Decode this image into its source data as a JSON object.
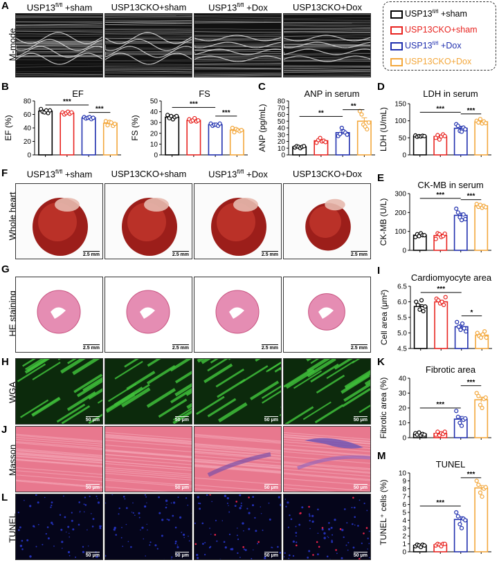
{
  "panel_letters": {
    "A": "A",
    "B": "B",
    "C": "C",
    "D": "D",
    "E": "E",
    "F": "F",
    "G": "G",
    "H": "H",
    "I": "I",
    "J": "J",
    "K": "K",
    "L": "L",
    "M": "M"
  },
  "groups": [
    {
      "base": "USP13",
      "sup": "fl/fl",
      "suffix": " +sham"
    },
    {
      "base": "USP13CKO+sham",
      "sup": "",
      "suffix": ""
    },
    {
      "base": "USP13",
      "sup": "fl/fl",
      "suffix": " +Dox"
    },
    {
      "base": "USP13CKO+Dox",
      "sup": "",
      "suffix": ""
    }
  ],
  "legend": [
    {
      "base": "USP13",
      "sup": "fl/fl",
      "suffix": " +sham",
      "color": "#000000"
    },
    {
      "base": "USP13CKO+sham",
      "sup": "",
      "suffix": "",
      "color": "#e8231f"
    },
    {
      "base": "USP13",
      "sup": "fl/fl",
      "suffix": " +Dox",
      "color": "#1f2fae"
    },
    {
      "base": "USP13CKO+Dox",
      "sup": "",
      "suffix": "",
      "color": "#f3a73b"
    }
  ],
  "row_labels": {
    "mmode": "M-mode",
    "heart": "Whole heart",
    "he": "HE staining",
    "wga": "WGA",
    "masson": "Masson",
    "tunel": "TUNEL"
  },
  "scale_bars": {
    "heart": "2.5 mm",
    "he": "2.5 mm",
    "micro": "50 μm"
  },
  "colors": {
    "c0": "#000000",
    "c1": "#e8231f",
    "c2": "#1f2fae",
    "c3": "#f3a73b"
  },
  "chart_data": [
    {
      "id": "B-EF",
      "type": "bar",
      "title": "EF",
      "ylabel": "EF (%)",
      "ylim": [
        0,
        80
      ],
      "yticks": [
        0,
        20,
        40,
        60,
        80
      ],
      "values": [
        65,
        62,
        55,
        47
      ],
      "errors": [
        1.5,
        1.2,
        0.8,
        2.0
      ],
      "points": [
        [
          68,
          64,
          63,
          66,
          62,
          66
        ],
        [
          63,
          60,
          62,
          64,
          61,
          63
        ],
        [
          56,
          54,
          55,
          56,
          53,
          55
        ],
        [
          50,
          44,
          49,
          48,
          43,
          46
        ]
      ],
      "sig": [
        {
          "from": 0,
          "to": 2,
          "label": "***",
          "y": 74
        },
        {
          "from": 2,
          "to": 3,
          "label": "***",
          "y": 63
        }
      ]
    },
    {
      "id": "B-FS",
      "type": "bar",
      "title": "FS",
      "ylabel": "FS (%)",
      "ylim": [
        0,
        50
      ],
      "yticks": [
        0,
        10,
        20,
        30,
        40,
        50
      ],
      "values": [
        35,
        32,
        28,
        23
      ],
      "errors": [
        1.0,
        0.8,
        0.5,
        0.9
      ],
      "points": [
        [
          37,
          34,
          36,
          33,
          35,
          36
        ],
        [
          33,
          31,
          32,
          34,
          31,
          32
        ],
        [
          29,
          27,
          28,
          28,
          27,
          29
        ],
        [
          25,
          21,
          24,
          23,
          22,
          23
        ]
      ],
      "sig": [
        {
          "from": 0,
          "to": 2,
          "label": "***",
          "y": 44
        },
        {
          "from": 2,
          "to": 3,
          "label": "***",
          "y": 36
        }
      ]
    },
    {
      "id": "C",
      "type": "bar",
      "title": "ANP in serum",
      "ylabel": "ANP (pg/mL)",
      "ylim": [
        0,
        80
      ],
      "yticks": [
        0,
        10,
        20,
        30,
        40,
        50,
        60,
        70,
        80
      ],
      "values": [
        12,
        21,
        33,
        50
      ],
      "errors": [
        1.0,
        2.0,
        3.0,
        5.0
      ],
      "points": [
        [
          11,
          13,
          12,
          10,
          12,
          13
        ],
        [
          18,
          22,
          25,
          20,
          21,
          19
        ],
        [
          28,
          31,
          40,
          35,
          33,
          30
        ],
        [
          65,
          60,
          45,
          42,
          38,
          48
        ]
      ],
      "sig": [
        {
          "from": 0,
          "to": 2,
          "label": "**",
          "y": 57
        },
        {
          "from": 2,
          "to": 3,
          "label": "**",
          "y": 67
        }
      ]
    },
    {
      "id": "D",
      "type": "bar",
      "title": "LDH in serum",
      "ylabel": "LDH (U/mL)",
      "ylim": [
        0,
        150
      ],
      "yticks": [
        0,
        50,
        100,
        150
      ],
      "values": [
        55,
        54,
        78,
        97
      ],
      "errors": [
        2,
        4,
        6,
        3
      ],
      "points": [
        [
          57,
          53,
          55,
          54,
          56,
          55
        ],
        [
          50,
          58,
          45,
          54,
          60,
          55
        ],
        [
          90,
          85,
          70,
          68,
          80,
          75
        ],
        [
          100,
          95,
          105,
          92,
          98,
          93
        ]
      ],
      "sig": [
        {
          "from": 0,
          "to": 2,
          "label": "***",
          "y": 125
        },
        {
          "from": 2,
          "to": 3,
          "label": "***",
          "y": 120
        }
      ]
    },
    {
      "id": "E",
      "type": "bar",
      "title": "CK-MB in serum",
      "ylabel": "CK-MB (U/L)",
      "ylim": [
        0,
        300
      ],
      "yticks": [
        0,
        100,
        200,
        300
      ],
      "values": [
        80,
        78,
        185,
        235
      ],
      "errors": [
        6,
        8,
        12,
        6
      ],
      "points": [
        [
          70,
          85,
          75,
          90,
          80,
          80
        ],
        [
          60,
          90,
          85,
          70,
          75,
          88
        ],
        [
          220,
          200,
          175,
          160,
          190,
          165
        ],
        [
          245,
          230,
          240,
          225,
          235,
          228
        ]
      ],
      "sig": [
        {
          "from": 0,
          "to": 2,
          "label": "***",
          "y": 275
        },
        {
          "from": 2,
          "to": 3,
          "label": "***",
          "y": 268
        }
      ]
    },
    {
      "id": "I",
      "type": "bar",
      "title": "Cardiomyocyte area",
      "ylabel": "Cell area (μm²)",
      "ylim": [
        4.5,
        6.5
      ],
      "yticks": [
        4.5,
        5.0,
        5.5,
        6.0,
        6.5
      ],
      "values": [
        5.85,
        6.0,
        5.2,
        4.93
      ],
      "errors": [
        0.06,
        0.05,
        0.06,
        0.04
      ],
      "points": [
        [
          6.0,
          5.9,
          5.75,
          6.05,
          5.7,
          5.85
        ],
        [
          6.1,
          6.05,
          5.95,
          6.0,
          5.9,
          6.15
        ],
        [
          5.35,
          5.2,
          5.1,
          5.3,
          5.15,
          5.05
        ],
        [
          5.0,
          4.9,
          4.85,
          4.95,
          5.05,
          4.85
        ]
      ],
      "sig": [
        {
          "from": 0,
          "to": 2,
          "label": "***",
          "y": 6.3
        },
        {
          "from": 2,
          "to": 3,
          "label": "*",
          "y": 5.55
        }
      ]
    },
    {
      "id": "K",
      "type": "bar",
      "title": "Fibrotic area",
      "ylabel": "Fibrotic area (%)",
      "ylim": [
        0,
        40
      ],
      "yticks": [
        0,
        10,
        20,
        30,
        40
      ],
      "values": [
        2.5,
        2.8,
        12.5,
        25.5
      ],
      "errors": [
        0.4,
        0.7,
        1.8,
        1.8
      ],
      "points": [
        [
          3,
          2,
          3.5,
          1.5,
          2.5,
          2
        ],
        [
          2,
          4,
          1.5,
          3,
          2.5,
          4
        ],
        [
          18,
          14,
          10,
          8,
          12,
          13
        ],
        [
          30,
          28,
          22,
          20,
          26,
          27
        ]
      ],
      "sig": [
        {
          "from": 0,
          "to": 2,
          "label": "***",
          "y": 20
        },
        {
          "from": 2,
          "to": 3,
          "label": "***",
          "y": 35
        }
      ]
    },
    {
      "id": "M",
      "type": "bar",
      "title": "TUNEL",
      "ylabel": "TUNEL⁺ cells (%)",
      "ylim": [
        0,
        10
      ],
      "yticks": [
        0,
        1,
        2,
        3,
        4,
        5,
        6,
        7,
        8,
        9,
        10
      ],
      "values": [
        0.8,
        0.9,
        4.1,
        8.1
      ],
      "errors": [
        0.1,
        0.1,
        0.35,
        0.3
      ],
      "points": [
        [
          0.7,
          0.9,
          0.8,
          0.6,
          0.9,
          0.8
        ],
        [
          0.8,
          1.0,
          0.9,
          0.7,
          1.0,
          1.0
        ],
        [
          5.0,
          4.5,
          3.5,
          3.0,
          4.2,
          4.0
        ],
        [
          9.0,
          8.5,
          7.5,
          7.0,
          8.0,
          8.2
        ]
      ],
      "sig": [
        {
          "from": 0,
          "to": 2,
          "label": "***",
          "y": 5.8
        },
        {
          "from": 2,
          "to": 3,
          "label": "***",
          "y": 9.4
        }
      ]
    }
  ]
}
